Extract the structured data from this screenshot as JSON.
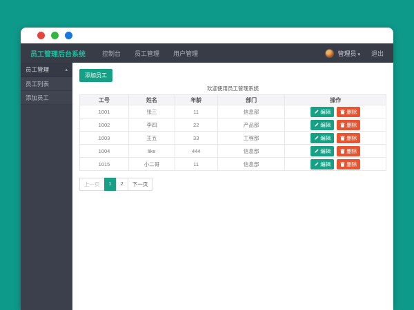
{
  "colors": {
    "background_teal": "#0e9a8a",
    "accent_teal": "#16a085",
    "brand_teal": "#21bfa2",
    "danger_orange": "#e8542f",
    "navbar_dark": "#373c47",
    "sidebar_dark": "#3b404c"
  },
  "window": {
    "traffic_lights": [
      "red",
      "green",
      "blue"
    ]
  },
  "navbar": {
    "brand": "员工管理后台系统",
    "items": [
      {
        "label": "控制台"
      },
      {
        "label": "员工管理"
      },
      {
        "label": "用户管理"
      }
    ],
    "user": {
      "name": "管理员",
      "caret": "▾",
      "logout": "退出"
    }
  },
  "sidebar": {
    "parent": {
      "label": "员工管理",
      "caret": "▴"
    },
    "items": [
      {
        "label": "员工列表"
      },
      {
        "label": "添加员工"
      }
    ]
  },
  "main": {
    "add_button": "添加员工",
    "caption": "欢迎使用员工管理系统",
    "table": {
      "headers": [
        "工号",
        "姓名",
        "年龄",
        "部门",
        "操作"
      ],
      "edit_label": "编辑",
      "delete_label": "删除",
      "rows": [
        {
          "id": "1001",
          "name": "张三",
          "age": "11",
          "dept": "信息部"
        },
        {
          "id": "1002",
          "name": "李四",
          "age": "22",
          "dept": "产品部"
        },
        {
          "id": "1003",
          "name": "王五",
          "age": "33",
          "dept": "工程部"
        },
        {
          "id": "1004",
          "name": "like",
          "age": "444",
          "dept": "信息部"
        },
        {
          "id": "1015",
          "name": "小二哥",
          "age": "11",
          "dept": "信息部"
        }
      ]
    },
    "pagination": {
      "items": [
        {
          "label": "上一页",
          "state": "disabled"
        },
        {
          "label": "1",
          "state": "active"
        },
        {
          "label": "2",
          "state": "normal"
        },
        {
          "label": "下一页",
          "state": "normal"
        }
      ]
    }
  }
}
